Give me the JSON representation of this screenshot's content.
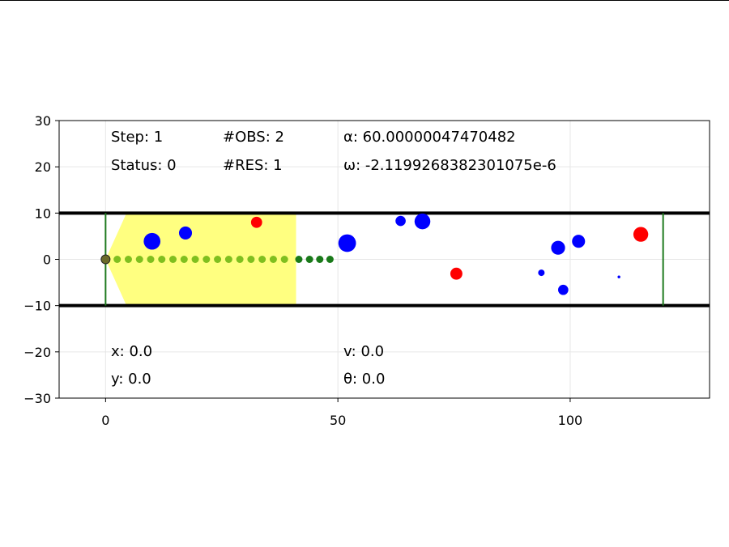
{
  "chart_data": {
    "type": "scatter",
    "xlim": [
      -10,
      130
    ],
    "ylim": [
      -30,
      30
    ],
    "x_ticks": [
      0,
      50,
      100
    ],
    "y_ticks": [
      30,
      20,
      10,
      0,
      -10,
      -20,
      -30
    ],
    "x_tick_labels": [
      "0",
      "50",
      "100"
    ],
    "y_tick_labels": [
      "30",
      "20",
      "10",
      "0",
      "−10",
      "−20",
      "−30"
    ],
    "grid": true,
    "lane_walls": [
      10,
      -10
    ],
    "lane_ends": [
      0,
      120
    ],
    "colors": {
      "wall": "#000000",
      "lane_end": "#1f7a1f",
      "sensor_region": "#ffff80",
      "obstacle": "#0000ff",
      "target": "#ff0000",
      "planned_path_inner": "#7fbf1f",
      "planned_path_outer": "#1a7a1a",
      "vehicle": "#6b6b2a"
    },
    "sensor_region": [
      [
        0,
        0
      ],
      [
        4.5,
        10
      ],
      [
        41,
        10
      ],
      [
        41,
        -10
      ],
      [
        4.5,
        -10
      ]
    ],
    "vehicle": {
      "x": 0,
      "y": 0
    },
    "planned_path": {
      "inner_x": [
        2.5,
        4.9,
        7.3,
        9.7,
        12.1,
        14.5,
        16.9,
        19.3,
        21.7,
        24.1,
        26.5,
        28.9,
        31.3,
        33.7,
        36.1,
        38.5
      ],
      "outer_x": [
        41.6,
        43.9,
        46.1,
        48.3
      ],
      "y": 0
    },
    "obstacles": [
      {
        "x": 10,
        "y": 3.9,
        "r": 1.8
      },
      {
        "x": 17.2,
        "y": 5.7,
        "r": 1.4
      },
      {
        "x": 52,
        "y": 3.5,
        "r": 1.9
      },
      {
        "x": 63.5,
        "y": 8.3,
        "r": 1.1
      },
      {
        "x": 68.2,
        "y": 8.2,
        "r": 1.7
      },
      {
        "x": 93.8,
        "y": -2.9,
        "r": 0.7
      },
      {
        "x": 97.4,
        "y": 2.5,
        "r": 1.5
      },
      {
        "x": 98.5,
        "y": -6.6,
        "r": 1.1
      },
      {
        "x": 101.8,
        "y": 3.9,
        "r": 1.4
      },
      {
        "x": 110.5,
        "y": -3.8,
        "r": 0.3
      }
    ],
    "targets": [
      {
        "x": 32.5,
        "y": 8,
        "r": 1.2
      },
      {
        "x": 75.5,
        "y": -3.1,
        "r": 1.3
      },
      {
        "x": 115.2,
        "y": 5.4,
        "r": 1.6
      }
    ]
  },
  "info": {
    "step": "Step: 1",
    "obs": "#OBS: 2",
    "alpha": "α: 60.00000047470482",
    "status": "Status: 0",
    "res": "#RES: 1",
    "omega": "ω: -2.1199268382301075e-6",
    "x": "x: 0.0",
    "v": "v: 0.0",
    "y": "y: 0.0",
    "theta": "θ: 0.0"
  }
}
